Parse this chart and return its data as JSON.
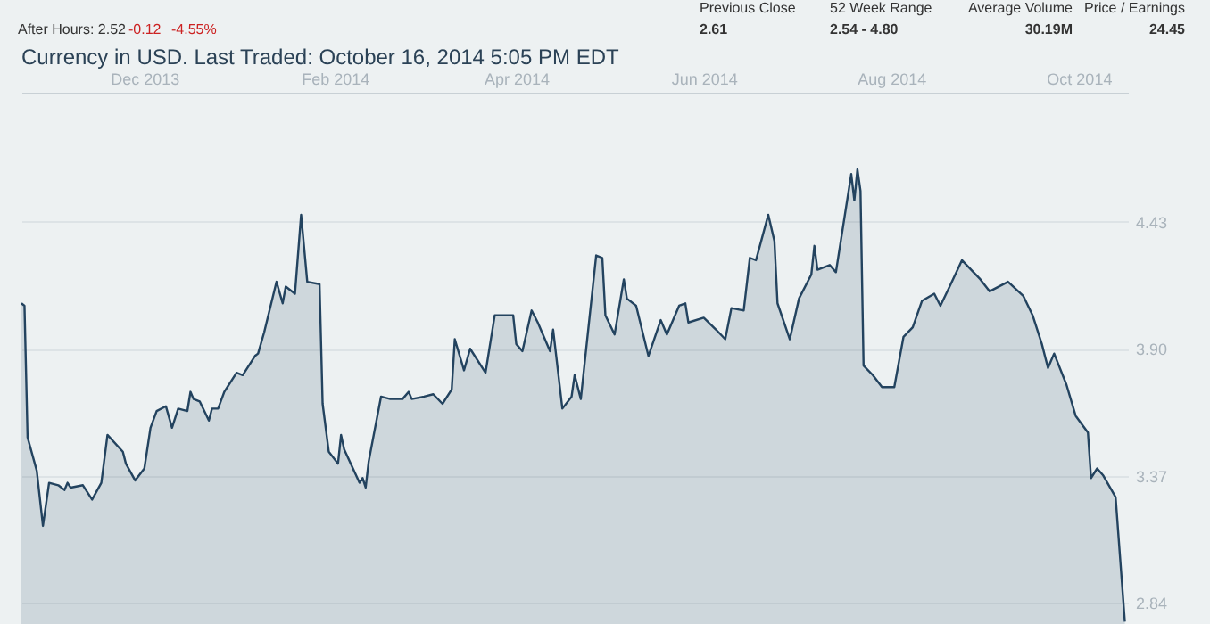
{
  "chart_data": {
    "type": "area",
    "title": "Currency in USD. Last Traded: October 16, 2014 5:05 PM EDT",
    "annotations": [
      "After Hours: 2.52",
      "-0.12",
      "-4.55%",
      "Previous Close",
      "2.61",
      "52 Week Range",
      "2.54 - 4.80",
      "Average Volume",
      "30.19M",
      "Price / Earnings",
      "24.45"
    ],
    "x": [
      "2013-10-22",
      "2013-10-23",
      "2013-10-24",
      "2013-10-27",
      "2013-10-29",
      "2013-10-31",
      "2013-11-03",
      "2013-11-05",
      "2013-11-06",
      "2013-11-07",
      "2013-11-11",
      "2013-11-14",
      "2013-11-17",
      "2013-11-19",
      "2013-11-24",
      "2013-11-25",
      "2013-11-28",
      "2013-12-01",
      "2013-12-03",
      "2013-12-05",
      "2013-12-08",
      "2013-12-10",
      "2013-12-12",
      "2013-12-15",
      "2013-12-16",
      "2013-12-17",
      "2013-12-19",
      "2013-12-22",
      "2013-12-23",
      "2013-12-25",
      "2013-12-27",
      "2013-12-31",
      "2014-01-02",
      "2014-01-06",
      "2014-01-07",
      "2014-01-09",
      "2014-01-13",
      "2014-01-15",
      "2014-01-16",
      "2014-01-19",
      "2014-01-21",
      "2014-01-23",
      "2014-01-27",
      "2014-01-28",
      "2014-01-30",
      "2014-02-02",
      "2014-02-03",
      "2014-02-04",
      "2014-02-09",
      "2014-02-10",
      "2014-02-11",
      "2014-02-12",
      "2014-02-16",
      "2014-02-19",
      "2014-02-23",
      "2014-02-25",
      "2014-02-26",
      "2014-03-02",
      "2014-03-05",
      "2014-03-08",
      "2014-03-11",
      "2014-03-12",
      "2014-03-15",
      "2014-03-17",
      "2014-03-22",
      "2014-03-25",
      "2014-03-31",
      "2014-04-01",
      "2014-04-03",
      "2014-04-06",
      "2014-04-08",
      "2014-04-12",
      "2014-04-13",
      "2014-04-16",
      "2014-04-19",
      "2014-04-20",
      "2014-04-22",
      "2014-04-27",
      "2014-04-29",
      "2014-04-30",
      "2014-05-03",
      "2014-05-06",
      "2014-05-07",
      "2014-05-10",
      "2014-05-14",
      "2014-05-18",
      "2014-05-20",
      "2014-05-24",
      "2014-05-26",
      "2014-05-27",
      "2014-06-01",
      "2014-06-05",
      "2014-06-08",
      "2014-06-10",
      "2014-06-14",
      "2014-06-16",
      "2014-06-18",
      "2014-06-22",
      "2014-06-24",
      "2014-06-25",
      "2014-06-29",
      "2014-07-02",
      "2014-07-06",
      "2014-07-07",
      "2014-07-08",
      "2014-07-12",
      "2014-07-14",
      "2014-07-19",
      "2014-07-20",
      "2014-07-21",
      "2014-07-22",
      "2014-07-23",
      "2014-07-26",
      "2014-07-29",
      "2014-08-02",
      "2014-08-05",
      "2014-08-08",
      "2014-08-11",
      "2014-08-15",
      "2014-08-17",
      "2014-08-20",
      "2014-08-24",
      "2014-08-30",
      "2014-09-02",
      "2014-09-08",
      "2014-09-13",
      "2014-09-16",
      "2014-09-19",
      "2014-09-21",
      "2014-09-23",
      "2014-09-27",
      "2014-09-30",
      "2014-10-04",
      "2014-10-05",
      "2014-10-07",
      "2014-10-09",
      "2014-10-13",
      "2014-10-16"
    ],
    "series": [
      {
        "color": "#23435f",
        "values": [
          4.09,
          4.08,
          3.53,
          3.39,
          3.16,
          3.34,
          3.33,
          3.31,
          3.34,
          3.32,
          3.33,
          3.27,
          3.34,
          3.54,
          3.47,
          3.42,
          3.35,
          3.4,
          3.57,
          3.64,
          3.66,
          3.57,
          3.65,
          3.64,
          3.72,
          3.69,
          3.68,
          3.6,
          3.65,
          3.65,
          3.72,
          3.8,
          3.79,
          3.87,
          3.88,
          3.97,
          4.18,
          4.09,
          4.16,
          4.13,
          4.46,
          4.18,
          4.17,
          3.67,
          3.47,
          3.42,
          3.54,
          3.48,
          3.34,
          3.36,
          3.32,
          3.43,
          3.7,
          3.69,
          3.69,
          3.72,
          3.69,
          3.7,
          3.71,
          3.67,
          3.73,
          3.94,
          3.81,
          3.9,
          3.8,
          4.04,
          4.04,
          3.92,
          3.89,
          4.06,
          4.01,
          3.89,
          3.98,
          3.65,
          3.7,
          3.79,
          3.69,
          4.29,
          4.28,
          4.04,
          3.96,
          4.19,
          4.11,
          4.08,
          3.87,
          4.02,
          3.96,
          4.08,
          4.09,
          4.01,
          4.03,
          3.98,
          3.94,
          4.07,
          4.06,
          4.28,
          4.27,
          4.46,
          4.35,
          4.09,
          3.94,
          4.11,
          4.21,
          4.33,
          4.23,
          4.25,
          4.22,
          4.63,
          4.52,
          4.65,
          4.56,
          3.83,
          3.79,
          3.74,
          3.74,
          3.95,
          3.99,
          4.1,
          4.13,
          4.08,
          4.16,
          4.27,
          4.19,
          4.14,
          4.18,
          4.12,
          4.04,
          3.92,
          3.82,
          3.88,
          3.75,
          3.62,
          3.55,
          3.36,
          3.4,
          3.37,
          3.28,
          2.76
        ]
      }
    ],
    "xlim": [
      "2013-10-22",
      "2014-10-17"
    ],
    "xticks": [
      {
        "value": "2013-12-01",
        "label": "Dec 2013"
      },
      {
        "value": "2014-02-01",
        "label": "Feb 2014"
      },
      {
        "value": "2014-04-01",
        "label": "Apr 2014"
      },
      {
        "value": "2014-06-01",
        "label": "Jun 2014"
      },
      {
        "value": "2014-08-01",
        "label": "Aug 2014"
      },
      {
        "value": "2014-10-01",
        "label": "Oct 2014"
      }
    ],
    "ylim": [
      2.75,
      4.97
    ],
    "yticks": [
      2.84,
      3.37,
      {
        "value": 3.9,
        "label": "3.90"
      },
      4.43
    ],
    "grid": "y"
  }
}
